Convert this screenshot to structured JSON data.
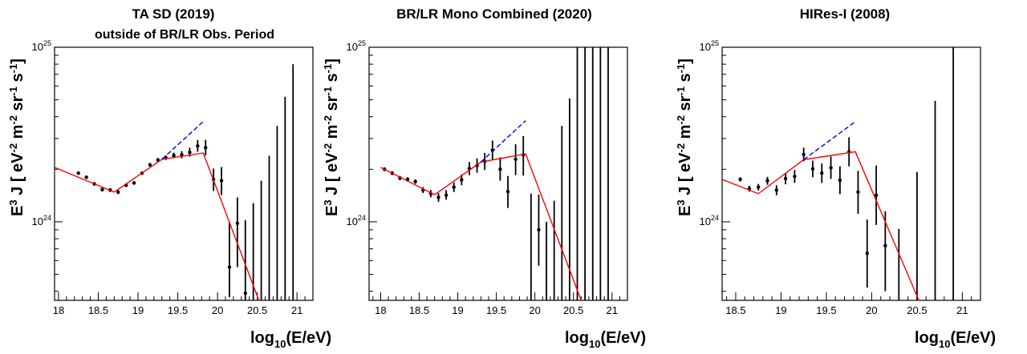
{
  "chart_data": [
    {
      "type": "scatter",
      "title": "TA SD (2019)",
      "subtitle": "outside of BR/LR Obs. Period",
      "xlabel_main": "log",
      "xlabel_sub": "10",
      "xlabel_rest": "(E/eV)",
      "ylabel": {
        "lead": "E",
        "lead_sup": "3",
        "mid": " J [ eV",
        "sup1": "-2",
        "m": " m",
        "sup2": "-2",
        "sr": " sr",
        "sup3": "-1",
        "s": " s",
        "sup4": "-1",
        "close": "]"
      },
      "xlim": [
        17.95,
        21.2
      ],
      "ylim_log10": [
        23.55,
        25.0
      ],
      "xticks": [
        {
          "value": 18,
          "label": "18"
        },
        {
          "value": 18.5,
          "label": "18.5"
        },
        {
          "value": 19,
          "label": "19"
        },
        {
          "value": 19.5,
          "label": "19.5"
        },
        {
          "value": 20,
          "label": "20"
        },
        {
          "value": 20.5,
          "label": "20.5"
        },
        {
          "value": 21,
          "label": "21"
        }
      ],
      "yticks": [
        {
          "log10": 25,
          "base": "10",
          "exp": "25"
        },
        {
          "log10": 24,
          "base": "10",
          "exp": "24"
        }
      ],
      "points": [
        {
          "x": 18.25,
          "y": 1.9,
          "lo": 1.86,
          "hi": 1.94
        },
        {
          "x": 18.35,
          "y": 1.8,
          "lo": 1.76,
          "hi": 1.84
        },
        {
          "x": 18.45,
          "y": 1.65,
          "lo": 1.61,
          "hi": 1.69
        },
        {
          "x": 18.55,
          "y": 1.53,
          "lo": 1.49,
          "hi": 1.57
        },
        {
          "x": 18.65,
          "y": 1.52,
          "lo": 1.48,
          "hi": 1.56
        },
        {
          "x": 18.75,
          "y": 1.48,
          "lo": 1.44,
          "hi": 1.52
        },
        {
          "x": 18.85,
          "y": 1.62,
          "lo": 1.58,
          "hi": 1.66
        },
        {
          "x": 18.95,
          "y": 1.67,
          "lo": 1.63,
          "hi": 1.71
        },
        {
          "x": 19.05,
          "y": 1.9,
          "lo": 1.86,
          "hi": 1.94
        },
        {
          "x": 19.15,
          "y": 2.12,
          "lo": 2.07,
          "hi": 2.17
        },
        {
          "x": 19.25,
          "y": 2.26,
          "lo": 2.2,
          "hi": 2.32
        },
        {
          "x": 19.35,
          "y": 2.33,
          "lo": 2.26,
          "hi": 2.4
        },
        {
          "x": 19.45,
          "y": 2.4,
          "lo": 2.31,
          "hi": 2.49
        },
        {
          "x": 19.55,
          "y": 2.42,
          "lo": 2.31,
          "hi": 2.54
        },
        {
          "x": 19.65,
          "y": 2.5,
          "lo": 2.36,
          "hi": 2.66
        },
        {
          "x": 19.75,
          "y": 2.72,
          "lo": 2.52,
          "hi": 2.94
        },
        {
          "x": 19.85,
          "y": 2.66,
          "lo": 2.4,
          "hi": 2.95
        },
        {
          "x": 19.95,
          "y": 1.75,
          "lo": 1.5,
          "hi": 2.02
        },
        {
          "x": 20.05,
          "y": 1.72,
          "lo": 1.42,
          "hi": 2.06
        },
        {
          "x": 20.15,
          "y": 0.55,
          "lo": 0.37,
          "hi": 1.0
        },
        {
          "x": 20.25,
          "y": 0.98,
          "lo": 0.55,
          "hi": 1.38
        },
        {
          "x": 20.35,
          "y": 0.39,
          "lo": 0.2,
          "hi": 1.02
        },
        {
          "x": 20.45,
          "y": null,
          "lo": 0.2,
          "hi": 1.28
        },
        {
          "x": 20.55,
          "y": null,
          "lo": 0.2,
          "hi": 1.72
        },
        {
          "x": 20.65,
          "y": null,
          "lo": 0.2,
          "hi": 2.39
        },
        {
          "x": 20.75,
          "y": null,
          "lo": 0.2,
          "hi": 3.54
        },
        {
          "x": 20.85,
          "y": null,
          "lo": 0.2,
          "hi": 5.2
        },
        {
          "x": 20.95,
          "y": null,
          "lo": 0.2,
          "hi": 8.0
        }
      ],
      "fit": [
        [
          17.95,
          2.05
        ],
        [
          18.7,
          1.48
        ],
        [
          19.3,
          2.28
        ],
        [
          19.82,
          2.48
        ],
        [
          20.52,
          0.32
        ]
      ],
      "extrapolation": [
        [
          19.3,
          2.28
        ],
        [
          19.82,
          3.75
        ]
      ]
    },
    {
      "type": "scatter",
      "title": "BR/LR Mono Combined (2020)",
      "subtitle": "",
      "xlabel_main": "log",
      "xlabel_sub": "10",
      "xlabel_rest": "(E/eV)",
      "ylabel": {
        "lead": "E",
        "lead_sup": "3",
        "mid": " J [ eV",
        "sup1": "-2",
        "m": " m",
        "sup2": "-2",
        "sr": " sr",
        "sup3": "-1",
        "s": " s",
        "sup4": "-1",
        "close": "]"
      },
      "xlim": [
        17.85,
        21.2
      ],
      "ylim_log10": [
        23.55,
        25.0
      ],
      "xticks": [
        {
          "value": 18,
          "label": "18"
        },
        {
          "value": 18.5,
          "label": "18.5"
        },
        {
          "value": 19,
          "label": "19"
        },
        {
          "value": 19.5,
          "label": "19.5"
        },
        {
          "value": 20,
          "label": "20"
        },
        {
          "value": 20.5,
          "label": "20.5"
        },
        {
          "value": 21,
          "label": "21"
        }
      ],
      "yticks": [
        {
          "log10": 25,
          "base": "10",
          "exp": "25"
        },
        {
          "log10": 24,
          "base": "10",
          "exp": "24"
        }
      ],
      "points": [
        {
          "x": 18.05,
          "y": 2.0,
          "lo": 1.95,
          "hi": 2.05
        },
        {
          "x": 18.15,
          "y": 1.9,
          "lo": 1.85,
          "hi": 1.95
        },
        {
          "x": 18.25,
          "y": 1.78,
          "lo": 1.73,
          "hi": 1.83
        },
        {
          "x": 18.35,
          "y": 1.75,
          "lo": 1.7,
          "hi": 1.8
        },
        {
          "x": 18.45,
          "y": 1.7,
          "lo": 1.65,
          "hi": 1.75
        },
        {
          "x": 18.55,
          "y": 1.52,
          "lo": 1.46,
          "hi": 1.58
        },
        {
          "x": 18.65,
          "y": 1.45,
          "lo": 1.38,
          "hi": 1.52
        },
        {
          "x": 18.75,
          "y": 1.38,
          "lo": 1.3,
          "hi": 1.46
        },
        {
          "x": 18.85,
          "y": 1.42,
          "lo": 1.34,
          "hi": 1.52
        },
        {
          "x": 18.95,
          "y": 1.58,
          "lo": 1.48,
          "hi": 1.68
        },
        {
          "x": 19.05,
          "y": 1.74,
          "lo": 1.62,
          "hi": 1.87
        },
        {
          "x": 19.15,
          "y": 2.02,
          "lo": 1.85,
          "hi": 2.2
        },
        {
          "x": 19.25,
          "y": 2.1,
          "lo": 1.91,
          "hi": 2.31
        },
        {
          "x": 19.35,
          "y": 2.22,
          "lo": 1.98,
          "hi": 2.48
        },
        {
          "x": 19.45,
          "y": 2.57,
          "lo": 2.26,
          "hi": 2.92
        },
        {
          "x": 19.55,
          "y": 2.0,
          "lo": 1.72,
          "hi": 2.34
        },
        {
          "x": 19.65,
          "y": 1.49,
          "lo": 1.2,
          "hi": 1.83
        },
        {
          "x": 19.75,
          "y": 2.28,
          "lo": 1.85,
          "hi": 2.78
        },
        {
          "x": 19.85,
          "y": 2.42,
          "lo": 1.84,
          "hi": 3.1
        },
        {
          "x": 19.95,
          "y": null,
          "lo": 0.2,
          "hi": 1.45
        },
        {
          "x": 20.05,
          "y": 0.9,
          "lo": 0.56,
          "hi": 1.43
        },
        {
          "x": 20.15,
          "y": null,
          "lo": 0.2,
          "hi": 1.0
        },
        {
          "x": 20.25,
          "y": null,
          "lo": 0.2,
          "hi": 1.32
        },
        {
          "x": 20.35,
          "y": null,
          "lo": 0.2,
          "hi": 3.54
        },
        {
          "x": 20.45,
          "y": null,
          "lo": 0.2,
          "hi": 5.1
        },
        {
          "x": 20.55,
          "y": null,
          "lo": 0.2,
          "hi": 10.0
        },
        {
          "x": 20.65,
          "y": null,
          "lo": 0.2,
          "hi": 10.0
        },
        {
          "x": 20.75,
          "y": null,
          "lo": 0.2,
          "hi": 10.0
        },
        {
          "x": 20.85,
          "y": null,
          "lo": 0.2,
          "hi": 10.0
        },
        {
          "x": 20.95,
          "y": null,
          "lo": 0.2,
          "hi": 10.0
        }
      ],
      "fit": [
        [
          18.0,
          2.05
        ],
        [
          18.7,
          1.43
        ],
        [
          19.3,
          2.2
        ],
        [
          19.88,
          2.45
        ],
        [
          20.6,
          0.3
        ]
      ],
      "extrapolation": [
        [
          19.3,
          2.2
        ],
        [
          19.88,
          3.8
        ]
      ]
    },
    {
      "type": "scatter",
      "title": "HIRes-I (2008)",
      "subtitle": "",
      "xlabel_main": "log",
      "xlabel_sub": "10",
      "xlabel_rest": "(E/eV)",
      "ylabel": {
        "lead": "E",
        "lead_sup": "3",
        "mid": " J [ eV",
        "sup1": "-2",
        "m": " m",
        "sup2": "-2",
        "sr": " sr",
        "sup3": "-1",
        "s": " s",
        "sup4": "-1",
        "close": "]"
      },
      "xlim": [
        18.35,
        21.2
      ],
      "ylim_log10": [
        23.55,
        25.0
      ],
      "xticks": [
        {
          "value": 18.5,
          "label": "18.5"
        },
        {
          "value": 19,
          "label": "19"
        },
        {
          "value": 19.5,
          "label": "19.5"
        },
        {
          "value": 20,
          "label": "20"
        },
        {
          "value": 20.5,
          "label": "20.5"
        },
        {
          "value": 21,
          "label": "21"
        }
      ],
      "yticks": [
        {
          "log10": 25,
          "base": "10",
          "exp": "25"
        },
        {
          "log10": 24,
          "base": "10",
          "exp": "24"
        }
      ],
      "points": [
        {
          "x": 18.55,
          "y": 1.75,
          "lo": 1.7,
          "hi": 1.8
        },
        {
          "x": 18.65,
          "y": 1.55,
          "lo": 1.49,
          "hi": 1.61
        },
        {
          "x": 18.75,
          "y": 1.58,
          "lo": 1.51,
          "hi": 1.65
        },
        {
          "x": 18.85,
          "y": 1.72,
          "lo": 1.63,
          "hi": 1.81
        },
        {
          "x": 18.95,
          "y": 1.52,
          "lo": 1.42,
          "hi": 1.62
        },
        {
          "x": 19.05,
          "y": 1.77,
          "lo": 1.64,
          "hi": 1.9
        },
        {
          "x": 19.15,
          "y": 1.82,
          "lo": 1.67,
          "hi": 1.98
        },
        {
          "x": 19.25,
          "y": 2.43,
          "lo": 2.22,
          "hi": 2.66
        },
        {
          "x": 19.35,
          "y": 2.01,
          "lo": 1.8,
          "hi": 2.24
        },
        {
          "x": 19.45,
          "y": 1.9,
          "lo": 1.67,
          "hi": 2.16
        },
        {
          "x": 19.55,
          "y": 2.04,
          "lo": 1.76,
          "hi": 2.37
        },
        {
          "x": 19.65,
          "y": 1.73,
          "lo": 1.44,
          "hi": 2.08
        },
        {
          "x": 19.75,
          "y": 2.52,
          "lo": 2.08,
          "hi": 3.05
        },
        {
          "x": 19.85,
          "y": 1.48,
          "lo": 1.11,
          "hi": 1.96
        },
        {
          "x": 19.95,
          "y": 0.66,
          "lo": 0.42,
          "hi": 1.03
        },
        {
          "x": 20.05,
          "y": 1.42,
          "lo": 0.96,
          "hi": 2.1
        },
        {
          "x": 20.15,
          "y": 0.73,
          "lo": 0.4,
          "hi": 1.15
        },
        {
          "x": 20.3,
          "y": null,
          "lo": 0.2,
          "hi": 0.91
        },
        {
          "x": 20.5,
          "y": null,
          "lo": 0.2,
          "hi": 1.93
        },
        {
          "x": 20.7,
          "y": null,
          "lo": 0.2,
          "hi": 4.93
        },
        {
          "x": 20.9,
          "y": null,
          "lo": 0.2,
          "hi": 10.0
        }
      ],
      "fit": [
        [
          18.35,
          1.75
        ],
        [
          18.75,
          1.45
        ],
        [
          19.25,
          2.27
        ],
        [
          19.82,
          2.52
        ],
        [
          20.52,
          0.32
        ]
      ],
      "extrapolation": [
        [
          19.25,
          2.27
        ],
        [
          19.82,
          3.75
        ]
      ]
    }
  ],
  "colors": {
    "fit": "#ff0000",
    "extrapolation": "#0000ee",
    "points": "#000000"
  }
}
